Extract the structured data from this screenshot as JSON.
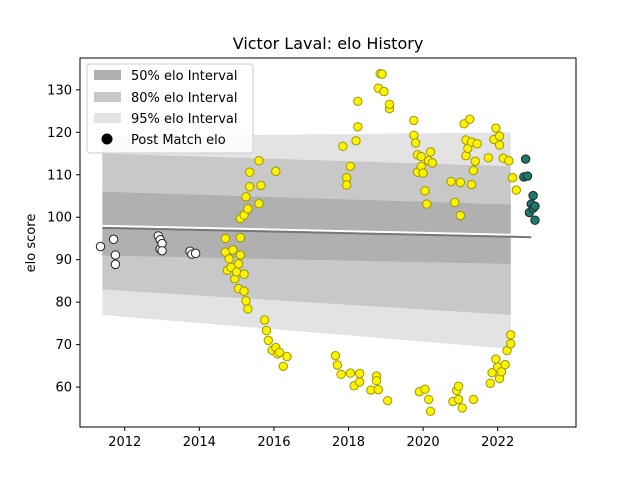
{
  "chart_data": {
    "type": "scatter",
    "title": "Victor Laval: elo History",
    "xlabel": "",
    "ylabel": "elo score",
    "xlim": [
      2010.8,
      2024.1
    ],
    "ylim": [
      50.6,
      137.5
    ],
    "x_ticks": [
      "2012",
      "2014",
      "2016",
      "2018",
      "2020",
      "2022"
    ],
    "y_ticks": [
      "60",
      "70",
      "80",
      "90",
      "100",
      "110",
      "120",
      "130"
    ],
    "grid": false,
    "legend_position": "top-left",
    "legend": {
      "interval_50": "50% elo Interval",
      "interval_80": "80% elo Interval",
      "interval_95": "95% elo Interval",
      "post_match": "Post Match elo"
    },
    "bands": {
      "x_range": [
        2011.4,
        2022.35
      ],
      "interval_50": {
        "lower_start": 91,
        "lower_end": 89,
        "upper_start": 106,
        "upper_end": 103
      },
      "interval_80": {
        "lower_start": 83,
        "lower_end": 77,
        "upper_start": 115,
        "upper_end": 112
      },
      "interval_95": {
        "lower_start": 77,
        "lower_end": 69,
        "upper_start": 119,
        "upper_end": 120
      },
      "mean_x_range": [
        2011.4,
        2022.9
      ],
      "mean_start": 97.5,
      "mean_end": 95.3
    },
    "series": [
      {
        "color": "#ffffff",
        "points": [
          [
            2011.35,
            93.1
          ],
          [
            2011.7,
            94.8
          ],
          [
            2011.75,
            91.1
          ],
          [
            2011.75,
            88.9
          ],
          [
            2012.9,
            95.6
          ],
          [
            2012.95,
            94.7
          ],
          [
            2012.95,
            92.5
          ],
          [
            2013.0,
            93.8
          ],
          [
            2013.0,
            92.1
          ],
          [
            2013.75,
            92.0
          ],
          [
            2013.8,
            91.3
          ],
          [
            2013.9,
            91.5
          ]
        ]
      },
      {
        "color": "#fff200",
        "points": [
          [
            2014.7,
            95.0
          ],
          [
            2014.7,
            91.8
          ],
          [
            2014.75,
            87.5
          ],
          [
            2014.8,
            90.2
          ],
          [
            2014.85,
            88.2
          ],
          [
            2014.9,
            92.3
          ],
          [
            2014.95,
            85.5
          ],
          [
            2015.0,
            87.1
          ],
          [
            2015.05,
            89.0
          ],
          [
            2015.05,
            83.2
          ],
          [
            2015.1,
            91.1
          ],
          [
            2015.1,
            95.2
          ],
          [
            2015.1,
            99.7
          ],
          [
            2015.2,
            86.6
          ],
          [
            2015.2,
            82.6
          ],
          [
            2015.25,
            80.3
          ],
          [
            2015.3,
            78.4
          ],
          [
            2015.2,
            100.5
          ],
          [
            2015.25,
            104.8
          ],
          [
            2015.3,
            102.0
          ],
          [
            2015.35,
            107.2
          ],
          [
            2015.35,
            110.6
          ],
          [
            2015.6,
            113.3
          ],
          [
            2015.65,
            107.5
          ],
          [
            2015.6,
            103.2
          ],
          [
            2015.75,
            75.8
          ],
          [
            2015.8,
            73.3
          ],
          [
            2015.85,
            71.0
          ],
          [
            2015.95,
            68.7
          ],
          [
            2016.05,
            69.3
          ],
          [
            2016.1,
            67.8
          ],
          [
            2016.15,
            68.2
          ],
          [
            2016.25,
            64.9
          ],
          [
            2016.35,
            67.2
          ],
          [
            2016.05,
            110.8
          ],
          [
            2017.65,
            67.4
          ],
          [
            2017.7,
            65.2
          ],
          [
            2017.8,
            63.0
          ],
          [
            2017.85,
            116.7
          ],
          [
            2017.95,
            109.3
          ],
          [
            2017.95,
            107.6
          ],
          [
            2018.05,
            112.0
          ],
          [
            2018.05,
            63.3
          ],
          [
            2018.15,
            60.3
          ],
          [
            2018.2,
            118.0
          ],
          [
            2018.25,
            121.3
          ],
          [
            2018.25,
            127.3
          ],
          [
            2018.3,
            61.2
          ],
          [
            2018.3,
            63.2
          ],
          [
            2018.6,
            59.3
          ],
          [
            2018.75,
            62.6
          ],
          [
            2018.75,
            61.5
          ],
          [
            2018.8,
            59.4
          ],
          [
            2018.8,
            130.4
          ],
          [
            2018.85,
            133.8
          ],
          [
            2018.9,
            133.7
          ],
          [
            2018.95,
            129.6
          ],
          [
            2019.05,
            56.8
          ],
          [
            2019.1,
            125.6
          ],
          [
            2019.1,
            126.6
          ],
          [
            2019.75,
            119.3
          ],
          [
            2019.75,
            122.8
          ],
          [
            2019.8,
            117.5
          ],
          [
            2019.85,
            114.7
          ],
          [
            2019.85,
            110.6
          ],
          [
            2019.9,
            58.9
          ],
          [
            2019.95,
            114.3
          ],
          [
            2019.95,
            112.0
          ],
          [
            2020.0,
            110.4
          ],
          [
            2020.05,
            106.2
          ],
          [
            2020.05,
            59.5
          ],
          [
            2020.1,
            103.1
          ],
          [
            2020.15,
            57.1
          ],
          [
            2020.15,
            113.3
          ],
          [
            2020.2,
            115.4
          ],
          [
            2020.2,
            54.3
          ],
          [
            2020.25,
            112.8
          ],
          [
            2020.75,
            108.4
          ],
          [
            2020.8,
            56.6
          ],
          [
            2020.85,
            103.5
          ],
          [
            2020.9,
            59.2
          ],
          [
            2020.95,
            60.2
          ],
          [
            2020.95,
            57.1
          ],
          [
            2021.0,
            100.4
          ],
          [
            2021.0,
            108.2
          ],
          [
            2021.05,
            55.1
          ],
          [
            2021.1,
            122.0
          ],
          [
            2021.15,
            118.2
          ],
          [
            2021.15,
            114.5
          ],
          [
            2021.2,
            116.2
          ],
          [
            2021.25,
            123.1
          ],
          [
            2021.3,
            117.7
          ],
          [
            2021.3,
            107.7
          ],
          [
            2021.35,
            57.1
          ],
          [
            2021.35,
            111.0
          ],
          [
            2021.4,
            113.2
          ],
          [
            2021.45,
            117.3
          ],
          [
            2021.75,
            114.0
          ],
          [
            2021.8,
            60.9
          ],
          [
            2021.85,
            63.4
          ],
          [
            2021.9,
            118.3
          ],
          [
            2021.95,
            121.0
          ],
          [
            2021.95,
            66.6
          ],
          [
            2022.0,
            64.7
          ],
          [
            2022.05,
            119.1
          ],
          [
            2022.05,
            117.0
          ],
          [
            2022.05,
            62.0
          ],
          [
            2022.1,
            63.6
          ],
          [
            2022.15,
            113.9
          ],
          [
            2022.2,
            65.3
          ],
          [
            2022.25,
            68.6
          ],
          [
            2022.3,
            113.3
          ],
          [
            2022.35,
            72.3
          ],
          [
            2022.35,
            70.2
          ],
          [
            2022.4,
            109.3
          ],
          [
            2022.5,
            106.4
          ]
        ]
      },
      {
        "color": "#1a7a6b",
        "points": [
          [
            2022.7,
            109.5
          ],
          [
            2022.75,
            113.7
          ],
          [
            2022.8,
            109.7
          ],
          [
            2022.85,
            101.1
          ],
          [
            2022.9,
            103.1
          ],
          [
            2022.95,
            105.1
          ],
          [
            2022.95,
            102.1
          ],
          [
            2023.0,
            99.3
          ],
          [
            2023.0,
            102.6
          ]
        ]
      }
    ]
  }
}
